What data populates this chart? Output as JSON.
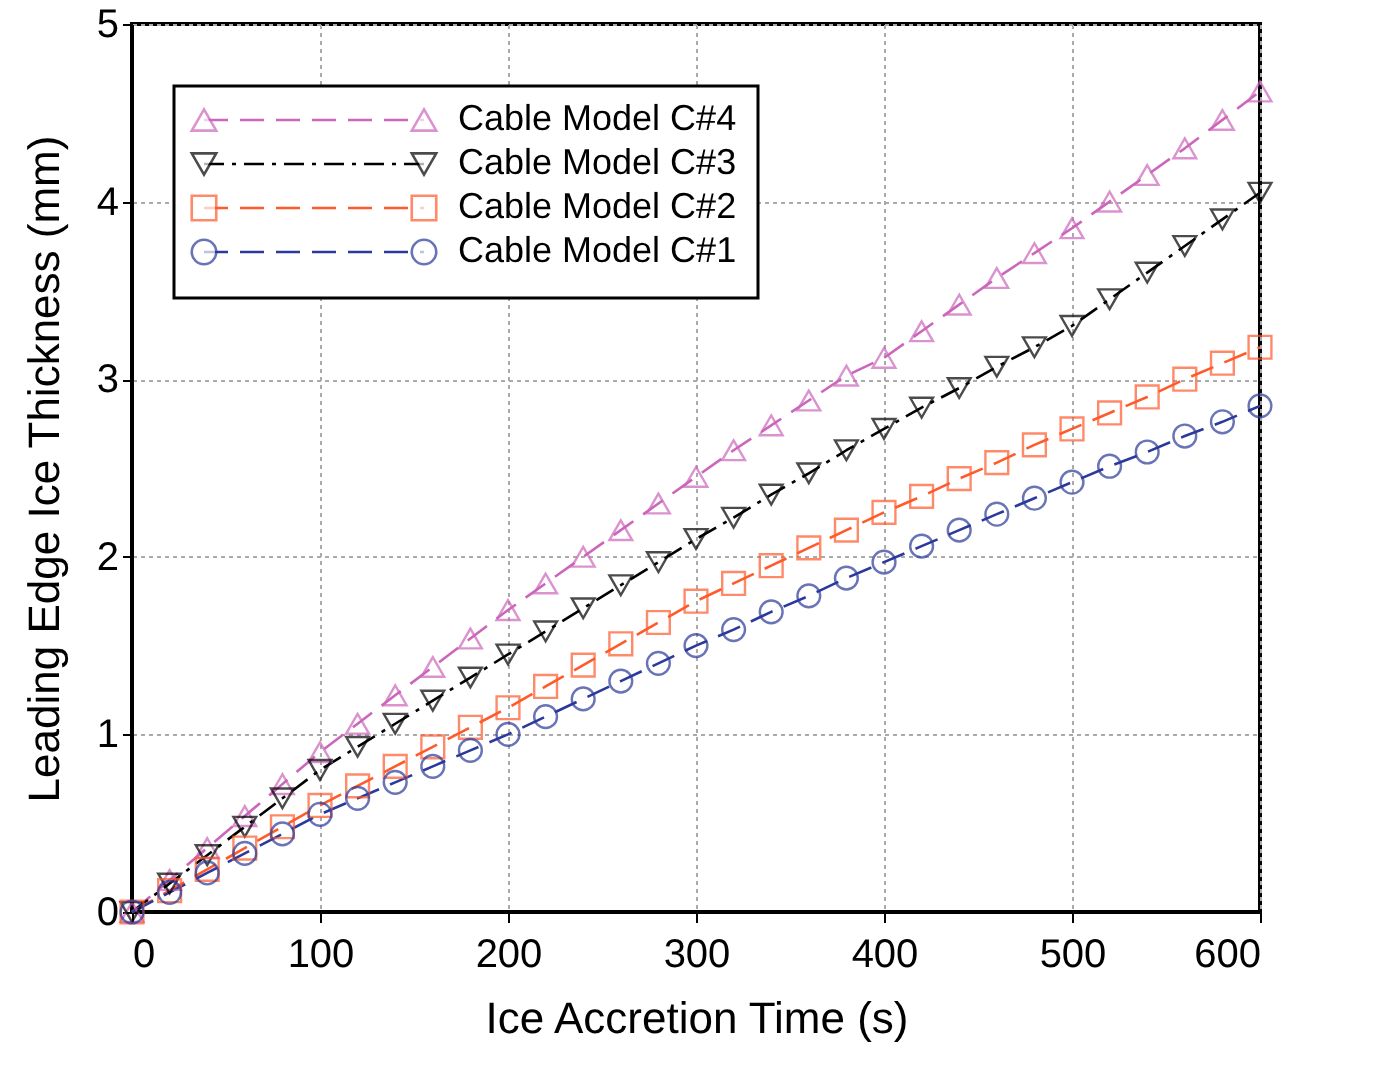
{
  "chart_data": {
    "type": "line",
    "xlabel": "Ice Accretion Time (s)",
    "ylabel": "Leading Edge Ice Thickness (mm)",
    "x": [
      0,
      20,
      40,
      60,
      80,
      100,
      120,
      140,
      160,
      180,
      200,
      220,
      240,
      260,
      280,
      300,
      320,
      340,
      360,
      380,
      400,
      420,
      440,
      460,
      480,
      500,
      520,
      540,
      560,
      580,
      600
    ],
    "series": [
      {
        "name": "Cable Model C#4",
        "color": "#cc66bb",
        "marker": "triangle",
        "line_style": "dashed",
        "values": [
          0,
          0.18,
          0.36,
          0.54,
          0.72,
          0.9,
          1.06,
          1.22,
          1.38,
          1.54,
          1.7,
          1.85,
          2.0,
          2.15,
          2.3,
          2.45,
          2.6,
          2.74,
          2.88,
          3.02,
          3.12,
          3.27,
          3.42,
          3.57,
          3.71,
          3.85,
          4.0,
          4.15,
          4.3,
          4.46,
          4.62
        ]
      },
      {
        "name": "Cable Model C#3",
        "color": "#000000",
        "marker": "triangle-down",
        "line_style": "dashdot",
        "values": [
          0,
          0.16,
          0.32,
          0.48,
          0.64,
          0.8,
          0.93,
          1.06,
          1.19,
          1.32,
          1.45,
          1.58,
          1.71,
          1.84,
          1.97,
          2.1,
          2.22,
          2.35,
          2.47,
          2.6,
          2.72,
          2.84,
          2.95,
          3.07,
          3.18,
          3.3,
          3.45,
          3.6,
          3.75,
          3.9,
          4.05
        ]
      },
      {
        "name": "Cable Model C#2",
        "color": "#ff5a2a",
        "marker": "square",
        "line_style": "dashed",
        "values": [
          0,
          0.12,
          0.24,
          0.36,
          0.48,
          0.6,
          0.71,
          0.82,
          0.93,
          1.04,
          1.15,
          1.27,
          1.39,
          1.51,
          1.63,
          1.75,
          1.85,
          1.95,
          2.05,
          2.15,
          2.25,
          2.34,
          2.44,
          2.53,
          2.63,
          2.72,
          2.81,
          2.9,
          3.0,
          3.09,
          3.18
        ]
      },
      {
        "name": "Cable Model C#1",
        "color": "#2b3a9a",
        "marker": "circle",
        "line_style": "dashed",
        "values": [
          0,
          0.11,
          0.22,
          0.33,
          0.44,
          0.55,
          0.64,
          0.73,
          0.82,
          0.91,
          1.0,
          1.1,
          1.2,
          1.3,
          1.4,
          1.5,
          1.59,
          1.69,
          1.78,
          1.88,
          1.97,
          2.06,
          2.15,
          2.24,
          2.33,
          2.42,
          2.51,
          2.59,
          2.68,
          2.76,
          2.85
        ]
      }
    ],
    "xlim": [
      0,
      600
    ],
    "xticks": [
      0,
      100,
      200,
      300,
      400,
      500,
      600
    ],
    "ylim": [
      0,
      5
    ],
    "yticks": [
      {
        "value": 0,
        "label": "0"
      },
      {
        "value": 1,
        "label": "1"
      },
      {
        "value": 2,
        "label": "2"
      },
      {
        "value": 3,
        "label": "3"
      },
      {
        "value": 4,
        "label": "4"
      },
      {
        "value": 5,
        "label": "5"
      }
    ],
    "grid": true,
    "legend": "top left"
  }
}
